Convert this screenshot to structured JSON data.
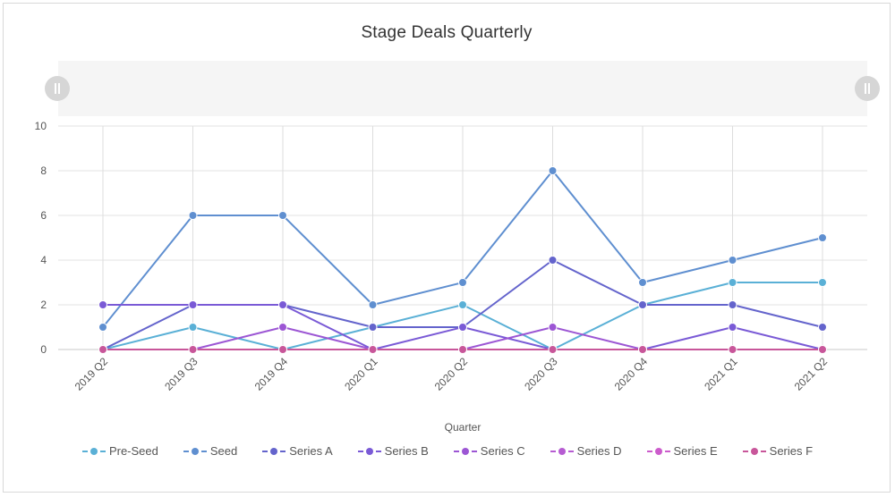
{
  "chart_data": {
    "type": "line",
    "title": "Stage Deals Quarterly",
    "xlabel": "Quarter",
    "ylabel": "",
    "ylim": [
      0,
      10
    ],
    "yticks": [
      "0",
      "2",
      "4",
      "6",
      "8",
      "10"
    ],
    "grid": true,
    "legend_position": "bottom",
    "categories": [
      "2019 Q2",
      "2019 Q3",
      "2019 Q4",
      "2020 Q1",
      "2020 Q2",
      "2020 Q3",
      "2020 Q4",
      "2021 Q1",
      "2021 Q2"
    ],
    "series": [
      {
        "name": "Pre-Seed",
        "color": "#5ab0d6",
        "values": [
          0,
          1,
          0,
          1,
          2,
          0,
          2,
          3,
          3
        ]
      },
      {
        "name": "Seed",
        "color": "#5f8fd0",
        "values": [
          1,
          6,
          6,
          2,
          3,
          8,
          3,
          4,
          5
        ]
      },
      {
        "name": "Series A",
        "color": "#6464cc",
        "values": [
          0,
          2,
          2,
          1,
          1,
          4,
          2,
          2,
          1
        ]
      },
      {
        "name": "Series B",
        "color": "#7a5ad6",
        "values": [
          2,
          2,
          2,
          0,
          1,
          0,
          0,
          1,
          0
        ]
      },
      {
        "name": "Series C",
        "color": "#9c56d4",
        "values": [
          0,
          0,
          1,
          0,
          0,
          1,
          0,
          0,
          0
        ]
      },
      {
        "name": "Series D",
        "color": "#b65cd2",
        "values": [
          0,
          0,
          0,
          0,
          0,
          0,
          0,
          0,
          0
        ]
      },
      {
        "name": "Series E",
        "color": "#cc5ccc",
        "values": [
          0,
          0,
          0,
          0,
          0,
          0,
          0,
          0,
          0
        ]
      },
      {
        "name": "Series F",
        "color": "#c8569a",
        "values": [
          0,
          0,
          0,
          0,
          0,
          0,
          0,
          0,
          0
        ]
      }
    ]
  }
}
